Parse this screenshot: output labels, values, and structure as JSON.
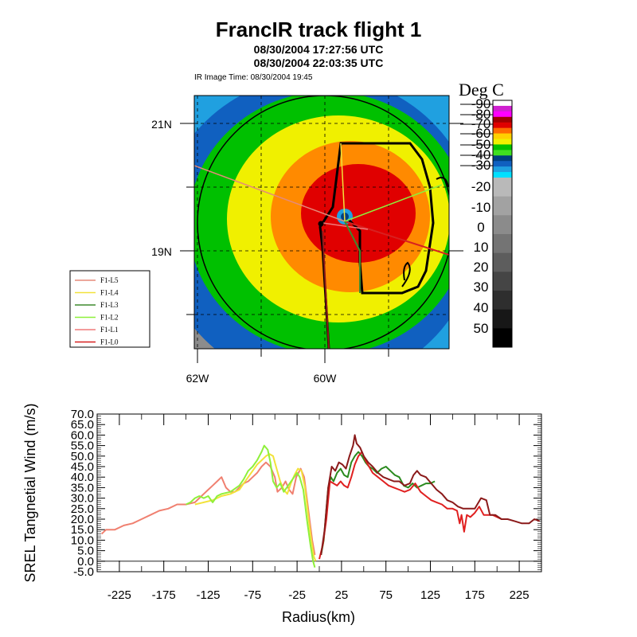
{
  "title": "FrancIR track flight 1",
  "subtitles": [
    "08/30/2004 17:27:56 UTC",
    "08/30/2004 22:03:35 UTC"
  ],
  "ir_image_time": "IR Image Time: 08/30/2004 19:45",
  "colors": {
    "legs": {
      "F1-L5": "#e58a7a",
      "F1-L4": "#f2e23a",
      "F1-L3": "#3e8a2e",
      "F1-L2": "#8ef03a",
      "F1-L1": "#f07a7a",
      "F1-L0": "#d82020"
    },
    "track": "#000000",
    "legend_border": "#000000"
  },
  "map": {
    "lat_labels": [
      "21N",
      "19N"
    ],
    "lon_labels": [
      "62W",
      "60W"
    ],
    "legend": [
      "F1-L5",
      "F1-L4",
      "F1-L3",
      "F1-L2",
      "F1-L1",
      "F1-L0"
    ]
  },
  "colorbar": {
    "title": "Deg C",
    "labels": [
      "-90",
      "-80",
      "-70",
      "-60",
      "-50",
      "-40",
      "-30",
      "-20",
      "-10",
      "0",
      "10",
      "20",
      "30",
      "40",
      "50"
    ],
    "colors": [
      "#ffffff",
      "#d020d0",
      "#ff00ff",
      "#a00000",
      "#e00000",
      "#ff6a00",
      "#ffd000",
      "#f0f000",
      "#00c000",
      "#40e020",
      "#004080",
      "#1060c0",
      "#20a0e0",
      "#00e0ff"
    ]
  },
  "chart_data": {
    "type": "line",
    "title": "",
    "xlabel": "Radius(km)",
    "ylabel": "SREL Tangnetial Wind (m/s)",
    "xlim": [
      -250,
      250
    ],
    "ylim": [
      -5,
      70
    ],
    "xticks": [
      "-225",
      "-175",
      "-125",
      "-75",
      "-25",
      "25",
      "75",
      "125",
      "175",
      "225"
    ],
    "yticks": [
      "-5.0",
      "0.0",
      "5.0",
      "10.0",
      "15.0",
      "20.0",
      "25.0",
      "30.0",
      "35.0",
      "40.0",
      "45.0",
      "50.0",
      "55.0",
      "60.0",
      "65.0",
      "70.0"
    ],
    "grid": false,
    "series": [
      {
        "name": "F1-L5",
        "color": "#f08070",
        "points": [
          [
            -245,
            13
          ],
          [
            -240,
            15
          ],
          [
            -230,
            15
          ],
          [
            -220,
            17
          ],
          [
            -210,
            18
          ],
          [
            -200,
            20
          ],
          [
            -190,
            22
          ],
          [
            -180,
            24
          ],
          [
            -170,
            25
          ],
          [
            -160,
            27
          ],
          [
            -150,
            27
          ],
          [
            -140,
            28
          ],
          [
            -130,
            32
          ],
          [
            -125,
            34
          ],
          [
            -120,
            36
          ],
          [
            -115,
            38
          ],
          [
            -110,
            40
          ],
          [
            -105,
            35
          ],
          [
            -100,
            33
          ],
          [
            -95,
            33
          ],
          [
            -90,
            35
          ],
          [
            -85,
            37
          ],
          [
            -80,
            38
          ],
          [
            -75,
            40
          ],
          [
            -70,
            42
          ],
          [
            -65,
            45
          ],
          [
            -60,
            47
          ],
          [
            -55,
            45
          ],
          [
            -50,
            40
          ],
          [
            -47,
            33
          ],
          [
            -42,
            35
          ],
          [
            -38,
            38
          ],
          [
            -34,
            34
          ],
          [
            -30,
            32
          ],
          [
            -26,
            40
          ],
          [
            -21,
            44
          ],
          [
            -17,
            40
          ],
          [
            -14,
            30
          ],
          [
            -11,
            20
          ],
          [
            -8,
            10
          ],
          [
            -5,
            3
          ]
        ]
      },
      {
        "name": "F1-L4",
        "color": "#f2e23a",
        "points": [
          [
            -140,
            27
          ],
          [
            -130,
            28
          ],
          [
            -120,
            29
          ],
          [
            -110,
            31
          ],
          [
            -100,
            32
          ],
          [
            -90,
            34
          ],
          [
            -85,
            37
          ],
          [
            -80,
            40
          ],
          [
            -75,
            43
          ],
          [
            -70,
            46
          ],
          [
            -65,
            48
          ],
          [
            -60,
            50
          ],
          [
            -56,
            51
          ],
          [
            -52,
            50
          ],
          [
            -48,
            44
          ],
          [
            -44,
            38
          ],
          [
            -40,
            34
          ],
          [
            -36,
            32
          ],
          [
            -32,
            37
          ],
          [
            -28,
            41
          ],
          [
            -24,
            44
          ],
          [
            -20,
            43
          ],
          [
            -16,
            35
          ],
          [
            -12,
            20
          ],
          [
            -9,
            10
          ],
          [
            -6,
            2
          ],
          [
            -4,
            0
          ]
        ]
      },
      {
        "name": "F1-L2",
        "color": "#8ef03a",
        "points": [
          [
            -150,
            27
          ],
          [
            -145,
            28
          ],
          [
            -140,
            30
          ],
          [
            -135,
            31
          ],
          [
            -130,
            30
          ],
          [
            -125,
            31
          ],
          [
            -120,
            28
          ],
          [
            -115,
            31
          ],
          [
            -110,
            32
          ],
          [
            -100,
            33
          ],
          [
            -90,
            36
          ],
          [
            -85,
            39
          ],
          [
            -80,
            43
          ],
          [
            -75,
            45
          ],
          [
            -70,
            48
          ],
          [
            -65,
            52
          ],
          [
            -62,
            55
          ],
          [
            -58,
            53
          ],
          [
            -55,
            47
          ],
          [
            -52,
            38
          ],
          [
            -48,
            35
          ],
          [
            -44,
            37
          ],
          [
            -40,
            33
          ],
          [
            -35,
            36
          ],
          [
            -30,
            39
          ],
          [
            -25,
            42
          ],
          [
            -22,
            40
          ],
          [
            -18,
            34
          ],
          [
            -14,
            20
          ],
          [
            -10,
            8
          ],
          [
            -7,
            0
          ],
          [
            -5,
            -3
          ]
        ]
      },
      {
        "name": "F1-L3",
        "color": "#2a8a1e",
        "points": [
          [
            2,
            3
          ],
          [
            5,
            10
          ],
          [
            8,
            25
          ],
          [
            10,
            35
          ],
          [
            13,
            40
          ],
          [
            16,
            38
          ],
          [
            20,
            42
          ],
          [
            24,
            44
          ],
          [
            28,
            41
          ],
          [
            32,
            40
          ],
          [
            36,
            47
          ],
          [
            40,
            50
          ],
          [
            44,
            52
          ],
          [
            48,
            50
          ],
          [
            52,
            47
          ],
          [
            56,
            45
          ],
          [
            60,
            44
          ],
          [
            65,
            42
          ],
          [
            70,
            44
          ],
          [
            75,
            45
          ],
          [
            80,
            43
          ],
          [
            85,
            41
          ],
          [
            90,
            40
          ],
          [
            95,
            36
          ],
          [
            100,
            35
          ],
          [
            105,
            37
          ],
          [
            110,
            35
          ],
          [
            115,
            36
          ],
          [
            120,
            37
          ],
          [
            125,
            37
          ],
          [
            130,
            38
          ]
        ]
      },
      {
        "name": "F1-L0",
        "color": "#e02020",
        "points": [
          [
            0,
            1
          ],
          [
            4,
            8
          ],
          [
            8,
            20
          ],
          [
            12,
            38
          ],
          [
            16,
            37
          ],
          [
            20,
            36
          ],
          [
            24,
            38
          ],
          [
            28,
            36
          ],
          [
            32,
            35
          ],
          [
            36,
            40
          ],
          [
            40,
            46
          ],
          [
            44,
            50
          ],
          [
            48,
            52
          ],
          [
            52,
            48
          ],
          [
            56,
            45
          ],
          [
            60,
            42
          ],
          [
            66,
            40
          ],
          [
            72,
            38
          ],
          [
            78,
            36
          ],
          [
            84,
            35
          ],
          [
            90,
            34
          ],
          [
            96,
            33
          ],
          [
            102,
            34
          ],
          [
            108,
            37
          ],
          [
            114,
            33
          ],
          [
            120,
            31
          ],
          [
            126,
            29
          ],
          [
            132,
            28
          ],
          [
            138,
            27
          ],
          [
            144,
            25
          ],
          [
            150,
            25
          ],
          [
            155,
            24
          ],
          [
            158,
            18
          ],
          [
            160,
            22
          ],
          [
            163,
            14
          ],
          [
            166,
            22
          ],
          [
            170,
            21
          ],
          [
            175,
            23
          ],
          [
            180,
            26
          ],
          [
            185,
            22
          ],
          [
            190,
            22
          ],
          [
            195,
            22
          ],
          [
            200,
            21
          ],
          [
            205,
            20
          ]
        ]
      },
      {
        "name": "F1-L1",
        "color": "#8b1a1a",
        "points": [
          [
            2,
            3
          ],
          [
            6,
            15
          ],
          [
            10,
            35
          ],
          [
            14,
            45
          ],
          [
            18,
            43
          ],
          [
            22,
            47
          ],
          [
            26,
            46
          ],
          [
            30,
            44
          ],
          [
            34,
            50
          ],
          [
            38,
            55
          ],
          [
            40,
            60
          ],
          [
            42,
            56
          ],
          [
            46,
            54
          ],
          [
            50,
            50
          ],
          [
            55,
            47
          ],
          [
            60,
            45
          ],
          [
            66,
            42
          ],
          [
            72,
            40
          ],
          [
            78,
            39
          ],
          [
            84,
            38
          ],
          [
            90,
            38
          ],
          [
            96,
            36
          ],
          [
            102,
            37
          ],
          [
            106,
            41
          ],
          [
            110,
            43
          ],
          [
            114,
            41
          ],
          [
            120,
            40
          ],
          [
            126,
            37
          ],
          [
            132,
            34
          ],
          [
            138,
            32
          ],
          [
            144,
            29
          ],
          [
            150,
            28
          ],
          [
            156,
            26
          ],
          [
            162,
            25
          ],
          [
            168,
            25
          ],
          [
            175,
            25
          ],
          [
            182,
            30
          ],
          [
            188,
            29
          ],
          [
            192,
            22
          ],
          [
            198,
            22
          ],
          [
            205,
            20
          ],
          [
            212,
            20
          ],
          [
            220,
            19
          ],
          [
            228,
            18
          ],
          [
            236,
            18
          ],
          [
            242,
            20
          ],
          [
            248,
            19
          ]
        ]
      }
    ]
  }
}
